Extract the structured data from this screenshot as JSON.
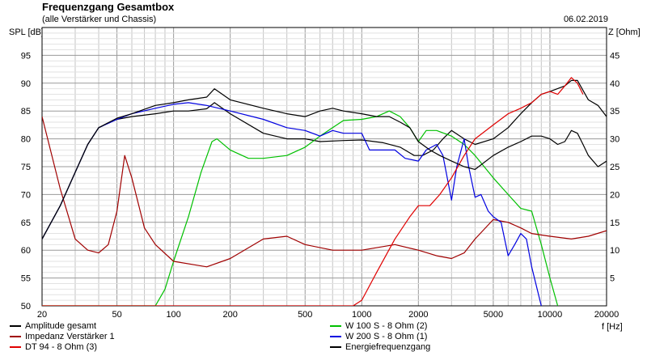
{
  "header": {
    "title": "Frequenzgang Gesamtbox",
    "subtitle": "(alle Verstärker und Chassis)",
    "date": "06.02.2019"
  },
  "chart_data": {
    "type": "line",
    "title": "Frequenzgang Gesamtbox",
    "subtitle": "(alle Verstärker und Chassis)",
    "xlabel": "f [Hz]",
    "ylabel_left": "SPL [dB]",
    "ylabel_right": "Z [Ohm]",
    "xscale": "log",
    "xlim": [
      20,
      20000
    ],
    "ylim_left": [
      50,
      100
    ],
    "ylim_right": [
      0,
      50
    ],
    "x_ticks": [
      20,
      50,
      100,
      200,
      500,
      1000,
      2000,
      5000,
      10000,
      20000
    ],
    "y_ticks_left": [
      50,
      55,
      60,
      65,
      70,
      75,
      80,
      85,
      90,
      95
    ],
    "y_ticks_right": [
      5,
      10,
      15,
      20,
      25,
      30,
      35,
      40,
      45
    ],
    "grid": true,
    "legend_position": "bottom",
    "series": [
      {
        "name": "Amplitude gesamt",
        "color": "#000000",
        "axis": "left",
        "x": [
          20,
          25,
          30,
          35,
          40,
          50,
          60,
          80,
          100,
          120,
          150,
          165,
          200,
          300,
          400,
          500,
          600,
          800,
          1000,
          1300,
          1600,
          1900,
          2100,
          2400,
          2700,
          3000,
          3500,
          4000,
          5000,
          6000,
          7000,
          8000,
          9000,
          10000,
          12000,
          13000,
          14000,
          16000,
          18000,
          20000
        ],
        "y": [
          62,
          68,
          74,
          79,
          82,
          83.5,
          84,
          84.5,
          85,
          85,
          85.4,
          86.5,
          84.5,
          81,
          80,
          80,
          79.5,
          79.7,
          79.8,
          79.3,
          78.5,
          77,
          77,
          78,
          80,
          81.5,
          80,
          79,
          80,
          82,
          84.5,
          86.5,
          88,
          88.5,
          89.5,
          90.5,
          90.5,
          87,
          86,
          84
        ]
      },
      {
        "name": "W 100 S - 8 Ohm (2)",
        "color": "#00c000",
        "axis": "left",
        "x": [
          20,
          40,
          70,
          80,
          90,
          100,
          120,
          140,
          160,
          170,
          200,
          250,
          300,
          400,
          500,
          600,
          700,
          800,
          1000,
          1200,
          1400,
          1600,
          1800,
          2000,
          2200,
          2500,
          3000,
          3500,
          4000,
          5000,
          6000,
          7000,
          8000,
          9000,
          10000,
          11000
        ],
        "y": [
          50,
          50,
          50,
          50,
          53,
          58,
          66,
          74,
          79.5,
          80,
          78,
          76.5,
          76.5,
          77,
          78.5,
          80.5,
          82,
          83.3,
          83.5,
          84,
          85,
          84,
          82,
          79.5,
          81.5,
          81.5,
          80.5,
          79,
          77,
          73,
          70,
          67.5,
          67,
          61,
          55,
          50
        ]
      },
      {
        "name": "Impedanz Verstärker 1",
        "color": "#a00000",
        "axis": "right",
        "x": [
          20,
          25,
          30,
          35,
          40,
          45,
          50,
          55,
          60,
          70,
          80,
          100,
          150,
          200,
          300,
          400,
          500,
          700,
          1000,
          1500,
          2000,
          2500,
          3000,
          3500,
          4000,
          5000,
          6000,
          7000,
          8000,
          10000,
          13000,
          16000,
          20000
        ],
        "y": [
          34,
          21,
          12,
          10,
          9.5,
          11,
          17,
          27,
          23,
          14,
          11,
          8,
          7,
          8.5,
          12,
          12.5,
          11,
          10,
          10,
          11,
          10,
          9,
          8.5,
          9.5,
          12,
          15.5,
          15,
          14,
          13,
          12.5,
          12,
          12.5,
          13.5
        ]
      },
      {
        "name": "W 200 S - 8 Ohm (1)",
        "color": "#0000e0",
        "axis": "left",
        "x": [
          20,
          25,
          30,
          35,
          40,
          50,
          60,
          80,
          100,
          120,
          150,
          200,
          300,
          400,
          500,
          600,
          700,
          800,
          900,
          1000,
          1100,
          1300,
          1500,
          1700,
          2000,
          2200,
          2500,
          2700,
          3000,
          3200,
          3500,
          3700,
          4000,
          4300,
          4700,
          5000,
          5500,
          6000,
          6500,
          7000,
          7500,
          8000,
          9000
        ],
        "y": [
          62,
          68,
          74,
          79,
          82,
          83.5,
          84.5,
          85.5,
          86.2,
          86.5,
          86,
          85,
          83.5,
          82,
          81.5,
          80.5,
          81.5,
          81,
          81,
          81,
          78,
          78,
          78,
          76.5,
          76,
          78,
          79,
          77,
          69,
          75,
          80,
          75,
          69.5,
          70,
          67,
          66,
          65,
          59,
          61,
          63,
          62,
          57,
          50
        ]
      },
      {
        "name": "DT 94 - 8 Ohm (3)",
        "color": "#e00000",
        "axis": "left",
        "x": [
          20,
          500,
          900,
          1000,
          1200,
          1500,
          1800,
          2000,
          2300,
          2600,
          3000,
          3500,
          4000,
          5000,
          6000,
          7000,
          8000,
          9000,
          10000,
          11000,
          12000,
          13000,
          14000,
          15000
        ],
        "y": [
          50,
          50,
          50,
          51,
          56,
          62,
          66,
          68,
          68,
          70,
          73,
          77,
          80,
          82.5,
          84.5,
          85.5,
          86.5,
          88,
          88.5,
          88,
          89.5,
          91,
          90,
          88
        ]
      },
      {
        "name": "Energiefrequenzgang",
        "color": "#000000",
        "axis": "left",
        "x": [
          20,
          25,
          30,
          35,
          40,
          50,
          60,
          80,
          100,
          120,
          150,
          165,
          200,
          300,
          400,
          500,
          600,
          700,
          800,
          1000,
          1200,
          1400,
          1600,
          1800,
          2000,
          2300,
          2600,
          3000,
          3500,
          4000,
          5000,
          6000,
          7000,
          8000,
          9000,
          10000,
          11000,
          12000,
          13000,
          14000,
          15000,
          16000,
          18000,
          20000
        ],
        "y": [
          62,
          68,
          74,
          79,
          82,
          83.7,
          84.5,
          86,
          86.5,
          87,
          87.5,
          89,
          87,
          85.5,
          84.5,
          84,
          85,
          85.5,
          85,
          84.5,
          84,
          84,
          83,
          82,
          79.5,
          78,
          77,
          76,
          75,
          74.5,
          77,
          78.5,
          79.5,
          80.5,
          80.5,
          80,
          79,
          79.5,
          81.5,
          81,
          79,
          77,
          75,
          76
        ]
      }
    ]
  }
}
